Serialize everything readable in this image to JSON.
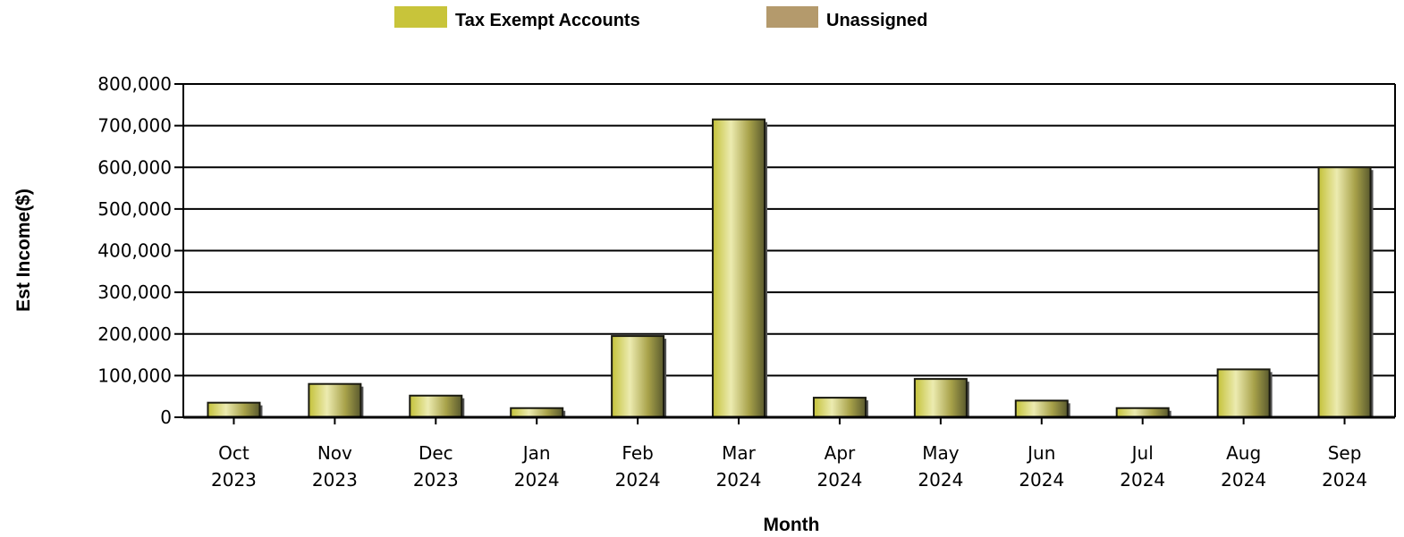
{
  "legend": [
    {
      "label": "Tax Exempt Accounts",
      "color": "#c8c43a"
    },
    {
      "label": "Unassigned",
      "color": "#b49a6c"
    }
  ],
  "chart_data": {
    "type": "bar",
    "xlabel": "Month",
    "ylabel": "Est Income($)",
    "ylim": [
      0,
      800000
    ],
    "yticks": [
      "0",
      "100,000",
      "200,000",
      "300,000",
      "400,000",
      "500,000",
      "600,000",
      "700,000",
      "800,000"
    ],
    "grid": true,
    "legend_position": "top",
    "categories": [
      [
        "Oct",
        "2023"
      ],
      [
        "Nov",
        "2023"
      ],
      [
        "Dec",
        "2023"
      ],
      [
        "Jan",
        "2024"
      ],
      [
        "Feb",
        "2024"
      ],
      [
        "Mar",
        "2024"
      ],
      [
        "Apr",
        "2024"
      ],
      [
        "May",
        "2024"
      ],
      [
        "Jun",
        "2024"
      ],
      [
        "Jul",
        "2024"
      ],
      [
        "Aug",
        "2024"
      ],
      [
        "Sep",
        "2024"
      ]
    ],
    "series": [
      {
        "name": "Tax Exempt Accounts",
        "color": "#c8c43a",
        "values": [
          35000,
          80000,
          52000,
          22000,
          195000,
          715000,
          47000,
          92000,
          40000,
          22000,
          115000,
          600000
        ]
      },
      {
        "name": "Unassigned",
        "color": "#b49a6c",
        "values": [
          0,
          0,
          0,
          0,
          0,
          0,
          0,
          0,
          0,
          0,
          0,
          0
        ]
      }
    ]
  }
}
